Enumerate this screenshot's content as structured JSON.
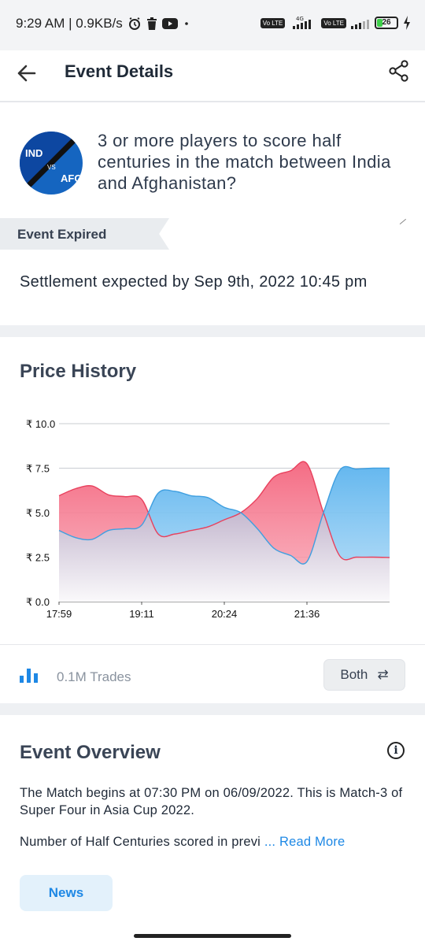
{
  "status_bar": {
    "time_speed": "9:29 AM | 0.9KB/s",
    "network_4g": "4G",
    "volte": "Vo LTE",
    "battery": "26"
  },
  "header": {
    "title": "Event Details"
  },
  "event": {
    "logo_team_a": "IND",
    "logo_vs": "VS",
    "logo_team_b": "AFG",
    "question": "3 or more players to score half centuries in the match between India and Afghanistan?",
    "status_tag": "Event Expired",
    "settlement": "Settlement expected by Sep 9th, 2022 10:45 pm"
  },
  "price_history": {
    "title": "Price History"
  },
  "chart_data": {
    "type": "area",
    "title": "",
    "ylim": [
      0,
      10
    ],
    "y_ticks": [
      "₹ 0.0",
      "₹ 2.5",
      "₹ 5.0",
      "₹ 7.5",
      "₹ 10.0"
    ],
    "x_ticks": [
      "17:59",
      "19:11",
      "20:24",
      "21:36"
    ],
    "grid": true,
    "legend": "none",
    "x_index": [
      0,
      1,
      2,
      3,
      4,
      5,
      6,
      7,
      8,
      9,
      10,
      11,
      12,
      13,
      14,
      15,
      16,
      17,
      18,
      19,
      20
    ],
    "series": [
      {
        "color": "#e8415d",
        "values": [
          5.95,
          6.35,
          6.5,
          6.0,
          5.9,
          5.75,
          3.8,
          3.8,
          4.0,
          4.2,
          4.6,
          5.0,
          5.8,
          7.0,
          7.35,
          7.75,
          5.0,
          2.55,
          2.5,
          2.5,
          2.48
        ]
      },
      {
        "color": "#3f9fe0",
        "values": [
          4.0,
          3.6,
          3.5,
          4.0,
          4.1,
          4.3,
          6.1,
          6.2,
          5.95,
          5.85,
          5.3,
          5.0,
          4.1,
          3.0,
          2.6,
          2.25,
          5.0,
          7.4,
          7.45,
          7.5,
          7.5
        ]
      }
    ]
  },
  "trades": {
    "label": "0.1M Trades",
    "toggle_label": "Both",
    "toggle_icon": "⇄"
  },
  "overview": {
    "title": "Event Overview",
    "paragraph": "The Match begins at 07:30 PM on 06/09/2022. This is Match-3 of Super Four in Asia Cup 2022.",
    "more_text": "Number of Half Centuries scored in previ ",
    "read_more": "... Read More",
    "news_button": "News"
  },
  "colors": {
    "accent_blue": "#1e88e5",
    "yes_red": "#e8415d",
    "no_blue": "#3f9fe0"
  }
}
